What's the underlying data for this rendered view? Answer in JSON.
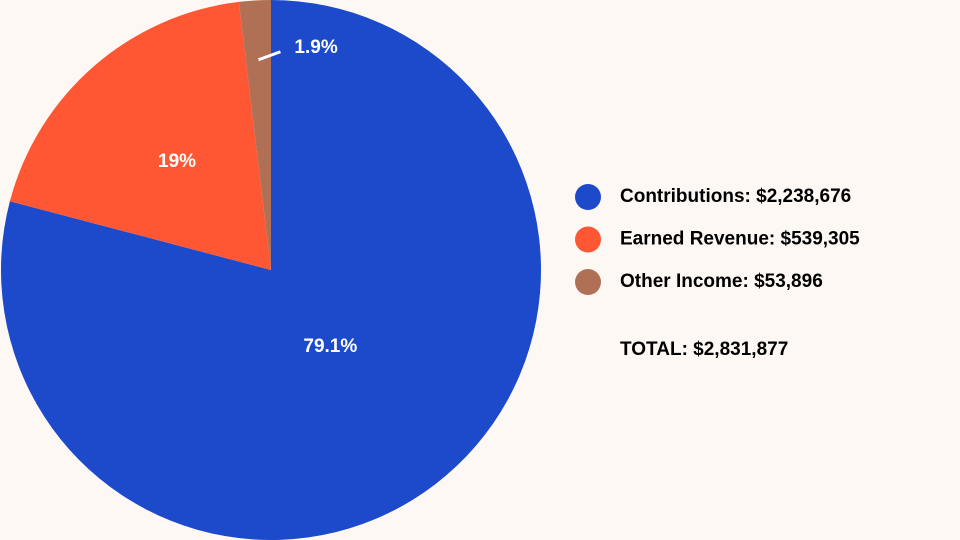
{
  "chart_data": {
    "type": "pie",
    "categories": [
      "Contributions: $2,238,676",
      "Earned Revenue: $539,305",
      "Other Income: $53,896"
    ],
    "values": [
      79.1,
      19,
      1.9
    ],
    "value_labels": [
      "79.1%",
      "19%",
      "1.9%"
    ],
    "colors": [
      "#1c4acb",
      "#ff5733",
      "#b07055"
    ],
    "annotation": "TOTAL: $2,831,877"
  }
}
